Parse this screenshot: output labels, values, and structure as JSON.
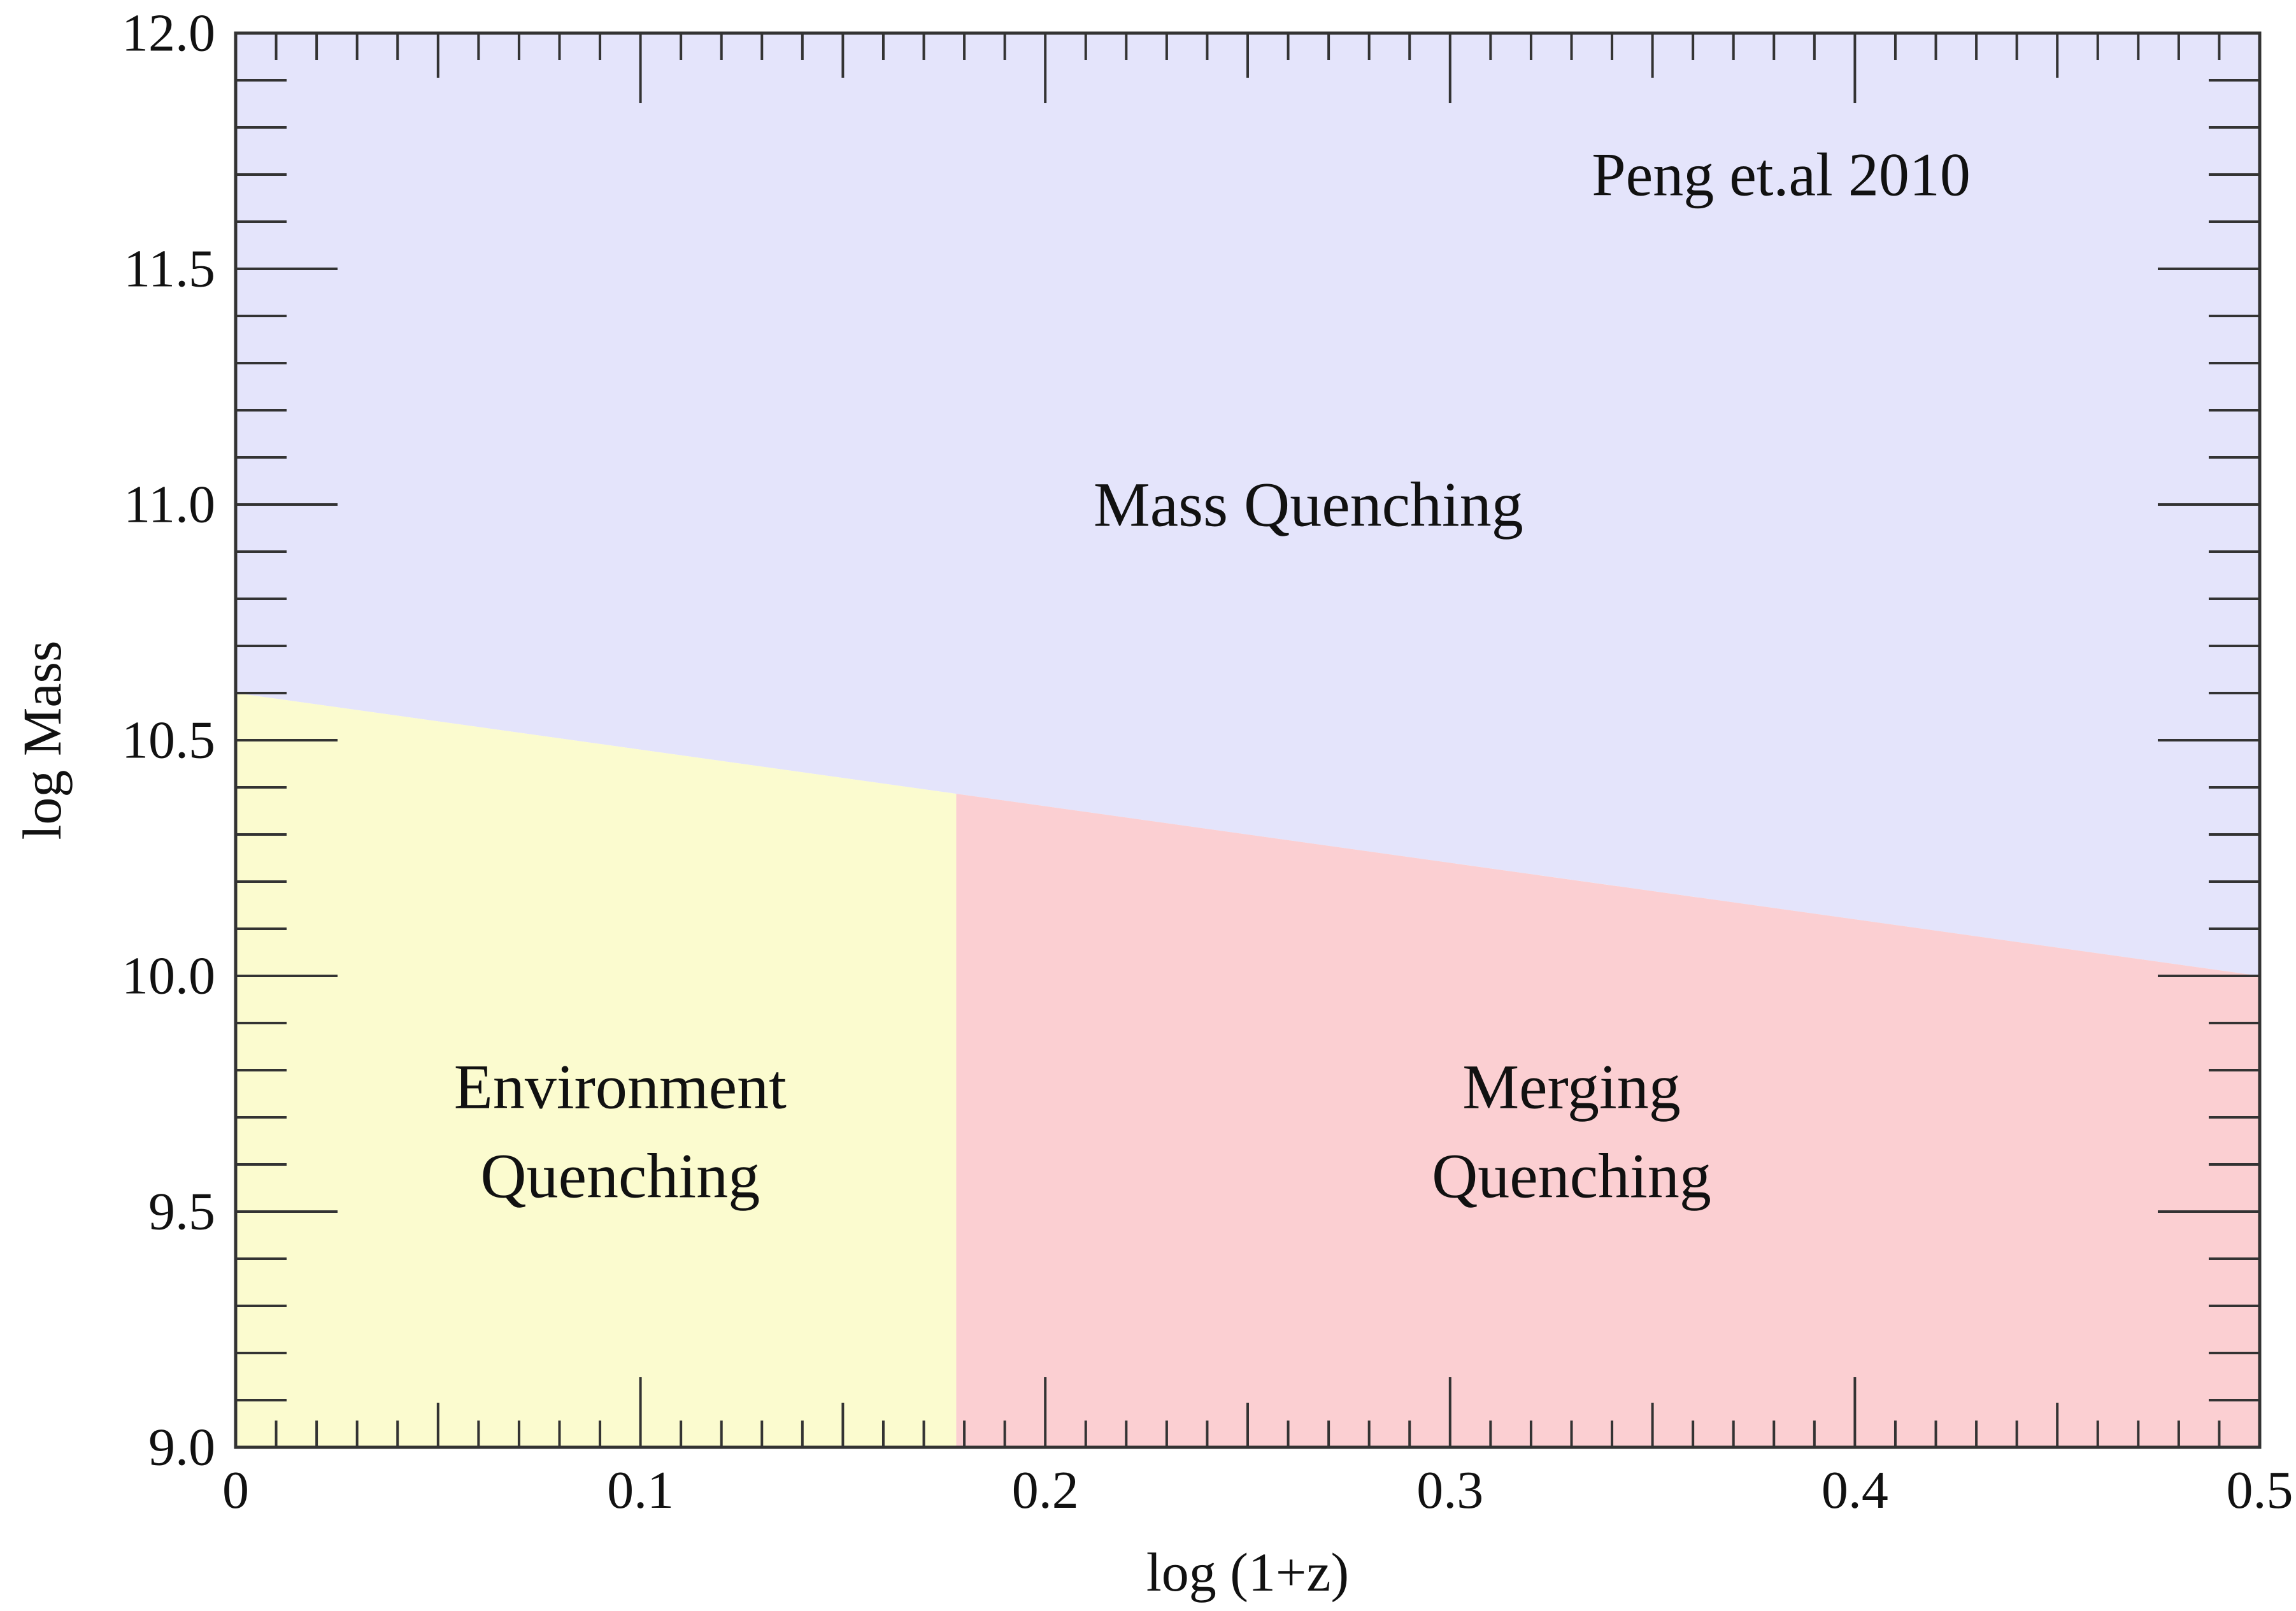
{
  "chart_data": {
    "type": "area",
    "title": "",
    "xlabel": "log (1+z)",
    "ylabel": "log Mass",
    "xlim": [
      0,
      0.5
    ],
    "ylim": [
      9.0,
      12.0
    ],
    "x_ticks": [
      0,
      0.1,
      0.2,
      0.3,
      0.4,
      0.5
    ],
    "x_tick_labels": [
      "0",
      "0.1",
      "0.2",
      "0.3",
      "0.4",
      "0.5"
    ],
    "y_ticks": [
      9.0,
      9.5,
      10.0,
      10.5,
      11.0,
      11.5,
      12.0
    ],
    "y_tick_labels": [
      "9.0",
      "9.5",
      "10.0",
      "10.5",
      "11.0",
      "11.5",
      "12.0"
    ],
    "grid": false,
    "boundary_line": {
      "x": [
        0,
        0.5
      ],
      "y": [
        10.6,
        10.0
      ]
    },
    "vertical_divider_x": 0.178,
    "regions": [
      {
        "name": "Mass Quenching",
        "label_lines": [
          "Mass Quenching"
        ],
        "color": "#e4e4fb",
        "label_pos": [
          0.265,
          11.0
        ]
      },
      {
        "name": "Environment Quenching",
        "label_lines": [
          "Environment",
          "Quenching"
        ],
        "color": "#fbfbcf",
        "label_pos": [
          0.095,
          9.67
        ]
      },
      {
        "name": "Merging Quenching",
        "label_lines": [
          "Merging",
          "Quenching"
        ],
        "color": "#fbcfd2",
        "label_pos": [
          0.33,
          9.67
        ]
      }
    ],
    "annotations": [
      {
        "text": "Peng et.al 2010",
        "pos": [
          0.335,
          11.7
        ]
      }
    ]
  }
}
